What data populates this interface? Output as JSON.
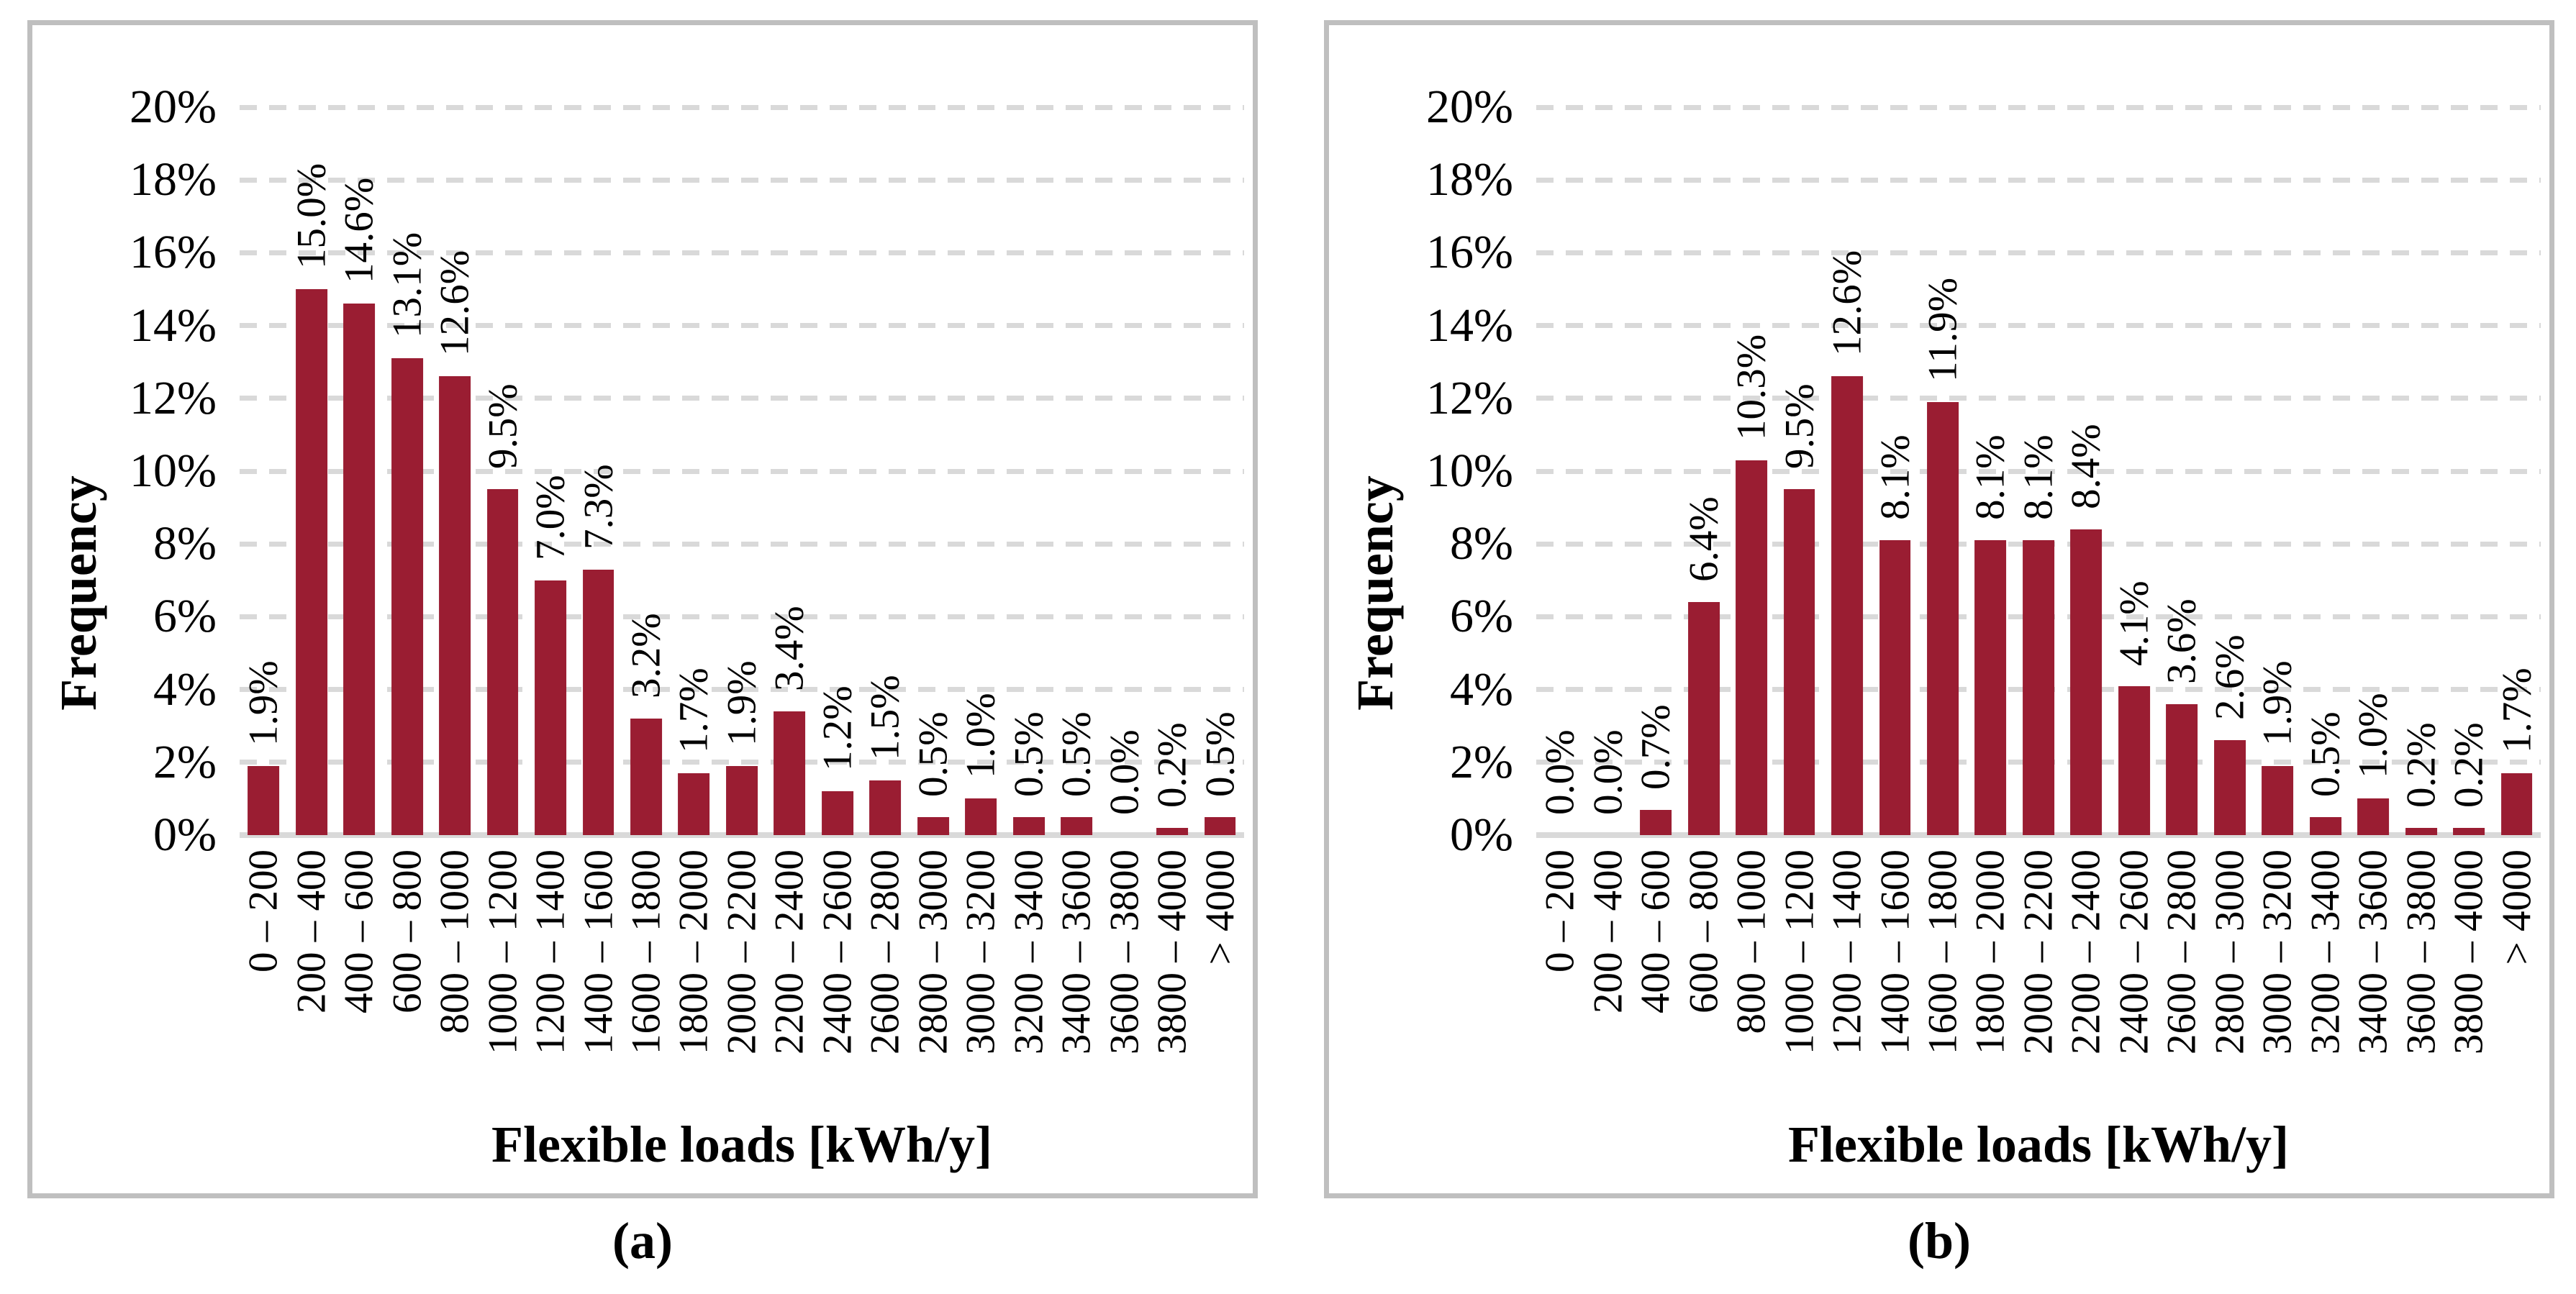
{
  "figure": {
    "captions": [
      "(a)",
      "(b)"
    ],
    "colors": {
      "bar": "#9A1D32",
      "gridline": "#D9D9D9",
      "axis_line": "#D9D9D9",
      "panel_border": "#BFBFBF",
      "background": "#FFFFFF",
      "text": "#000000"
    }
  },
  "chart_data": [
    {
      "type": "bar",
      "panel": "a",
      "title": "",
      "xlabel": "Flexible loads [kWh/y]",
      "ylabel": "Frequency",
      "ylim": [
        0,
        20
      ],
      "ytick_step": 2,
      "ytick_labels": [
        "0%",
        "2%",
        "4%",
        "6%",
        "8%",
        "10%",
        "12%",
        "14%",
        "16%",
        "18%",
        "20%"
      ],
      "grid": "horizontal-dashed",
      "legend": "none",
      "categories": [
        "0 – 200",
        "200 – 400",
        "400 – 600",
        "600 – 800",
        "800 – 1000",
        "1000 – 1200",
        "1200 – 1400",
        "1400 – 1600",
        "1600 – 1800",
        "1800 – 2000",
        "2000 – 2200",
        "2200 – 2400",
        "2400 – 2600",
        "2600 – 2800",
        "2800 – 3000",
        "3000 – 3200",
        "3200 – 3400",
        "3400 – 3600",
        "3600 – 3800",
        "3800 – 4000",
        "> 4000"
      ],
      "values": [
        1.9,
        15.0,
        14.6,
        13.1,
        12.6,
        9.5,
        7.0,
        7.3,
        3.2,
        1.7,
        1.9,
        3.4,
        1.2,
        1.5,
        0.5,
        1.0,
        0.5,
        0.5,
        0.0,
        0.2,
        0.5
      ],
      "labels": [
        "1.9%",
        "15.0%",
        "14.6%",
        "13.1%",
        "12.6%",
        "9.5%",
        "7.0%",
        "7.3%",
        "3.2%",
        "1.7%",
        "1.9%",
        "3.4%",
        "1.2%",
        "1.5%",
        "0.5%",
        "1.0%",
        "0.5%",
        "0.5%",
        "0.0%",
        "0.2%",
        "0.5%"
      ]
    },
    {
      "type": "bar",
      "panel": "b",
      "title": "",
      "xlabel": "Flexible loads [kWh/y]",
      "ylabel": "Frequency",
      "ylim": [
        0,
        20
      ],
      "ytick_step": 2,
      "ytick_labels": [
        "0%",
        "2%",
        "4%",
        "6%",
        "8%",
        "10%",
        "12%",
        "14%",
        "16%",
        "18%",
        "20%"
      ],
      "grid": "horizontal-dashed",
      "legend": "none",
      "categories": [
        "0 – 200",
        "200 – 400",
        "400 – 600",
        "600 – 800",
        "800 – 1000",
        "1000 – 1200",
        "1200 – 1400",
        "1400 – 1600",
        "1600 – 1800",
        "1800 – 2000",
        "2000 – 2200",
        "2200 – 2400",
        "2400 – 2600",
        "2600 – 2800",
        "2800 – 3000",
        "3000 – 3200",
        "3200 – 3400",
        "3400 – 3600",
        "3600 – 3800",
        "3800 – 4000",
        "> 4000"
      ],
      "values": [
        0.0,
        0.0,
        0.7,
        6.4,
        10.3,
        9.5,
        12.6,
        8.1,
        11.9,
        8.1,
        8.1,
        8.4,
        4.1,
        3.6,
        2.6,
        1.9,
        0.5,
        1.0,
        0.2,
        0.2,
        1.7
      ],
      "labels": [
        "0.0%",
        "0.0%",
        "0.7%",
        "6.4%",
        "10.3%",
        "9.5%",
        "12.6%",
        "8.1%",
        "11.9%",
        "8.1%",
        "8.1%",
        "8.4%",
        "4.1%",
        "3.6%",
        "2.6%",
        "1.9%",
        "0.5%",
        "1.0%",
        "0.2%",
        "0.2%",
        "1.7%"
      ]
    }
  ]
}
